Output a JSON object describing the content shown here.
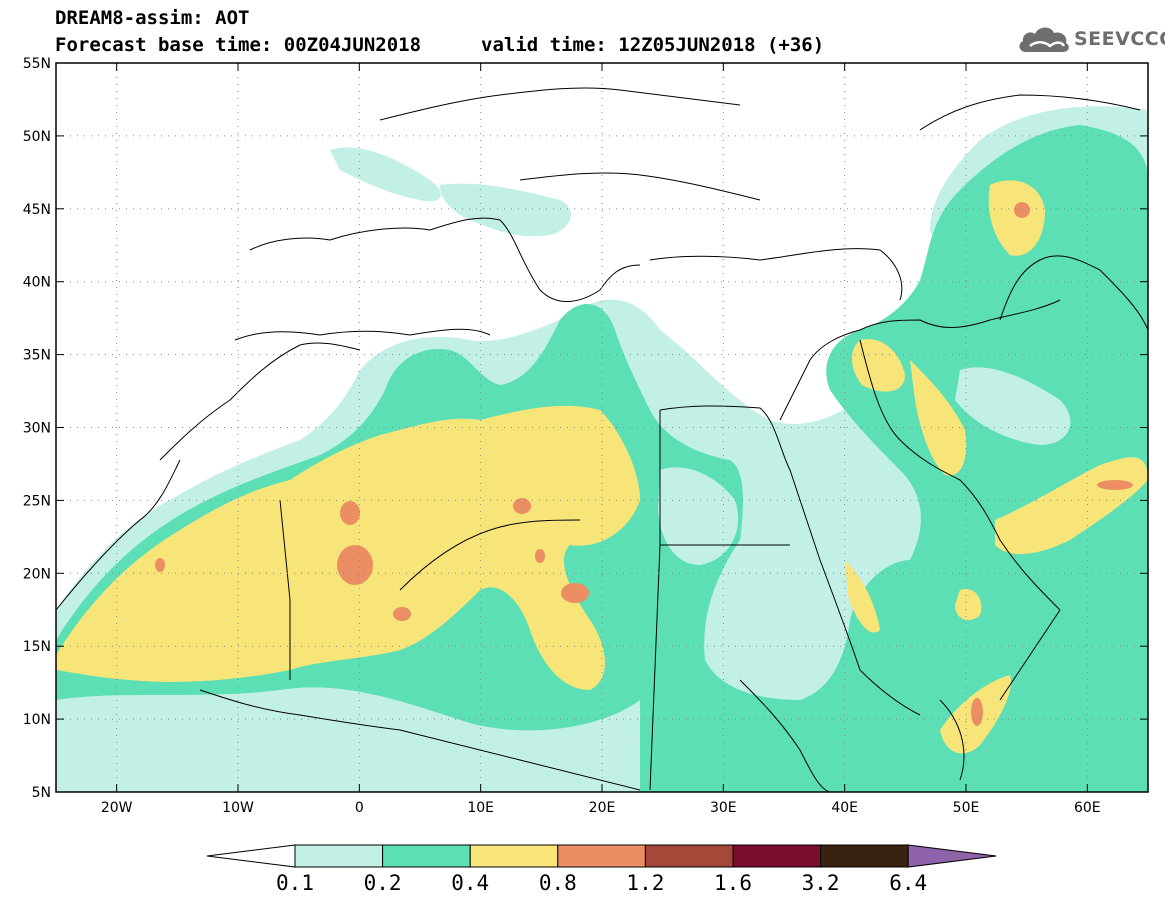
{
  "title": {
    "line1": "DREAM8-assim: AOT",
    "line2": "Forecast base time: 00Z04JUN2018",
    "valid": "valid time: 12Z05JUN2018 (+36)"
  },
  "logo": {
    "text": "SEEVCCC",
    "icon": "cloud-icon"
  },
  "map": {
    "lon_range": [
      -25,
      65
    ],
    "lat_range": [
      5,
      55
    ],
    "grid": "dotted",
    "x_ticks": [
      {
        "lon": -20,
        "label": "20W"
      },
      {
        "lon": -10,
        "label": "10W"
      },
      {
        "lon": 0,
        "label": "0"
      },
      {
        "lon": 10,
        "label": "10E"
      },
      {
        "lon": 20,
        "label": "20E"
      },
      {
        "lon": 30,
        "label": "30E"
      },
      {
        "lon": 40,
        "label": "40E"
      },
      {
        "lon": 50,
        "label": "50E"
      },
      {
        "lon": 60,
        "label": "60E"
      }
    ],
    "y_ticks": [
      {
        "lat": 55,
        "label": "55N"
      },
      {
        "lat": 50,
        "label": "50N"
      },
      {
        "lat": 45,
        "label": "45N"
      },
      {
        "lat": 40,
        "label": "40N"
      },
      {
        "lat": 35,
        "label": "35N"
      },
      {
        "lat": 30,
        "label": "30N"
      },
      {
        "lat": 25,
        "label": "25N"
      },
      {
        "lat": 20,
        "label": "20N"
      },
      {
        "lat": 15,
        "label": "15N"
      },
      {
        "lat": 10,
        "label": "10N"
      },
      {
        "lat": 5,
        "label": "5N"
      }
    ]
  },
  "colorbar": {
    "colors": [
      "#c2f0e6",
      "#5ddfb6",
      "#f7e57a",
      "#ec8e63",
      "#a4483a",
      "#7b0d2e",
      "#3a2210",
      "#8e63a9"
    ],
    "under_color": "#ffffff",
    "labels": [
      "0.1",
      "0.2",
      "0.4",
      "0.8",
      "1.2",
      "1.6",
      "3.2",
      "6.4"
    ]
  }
}
